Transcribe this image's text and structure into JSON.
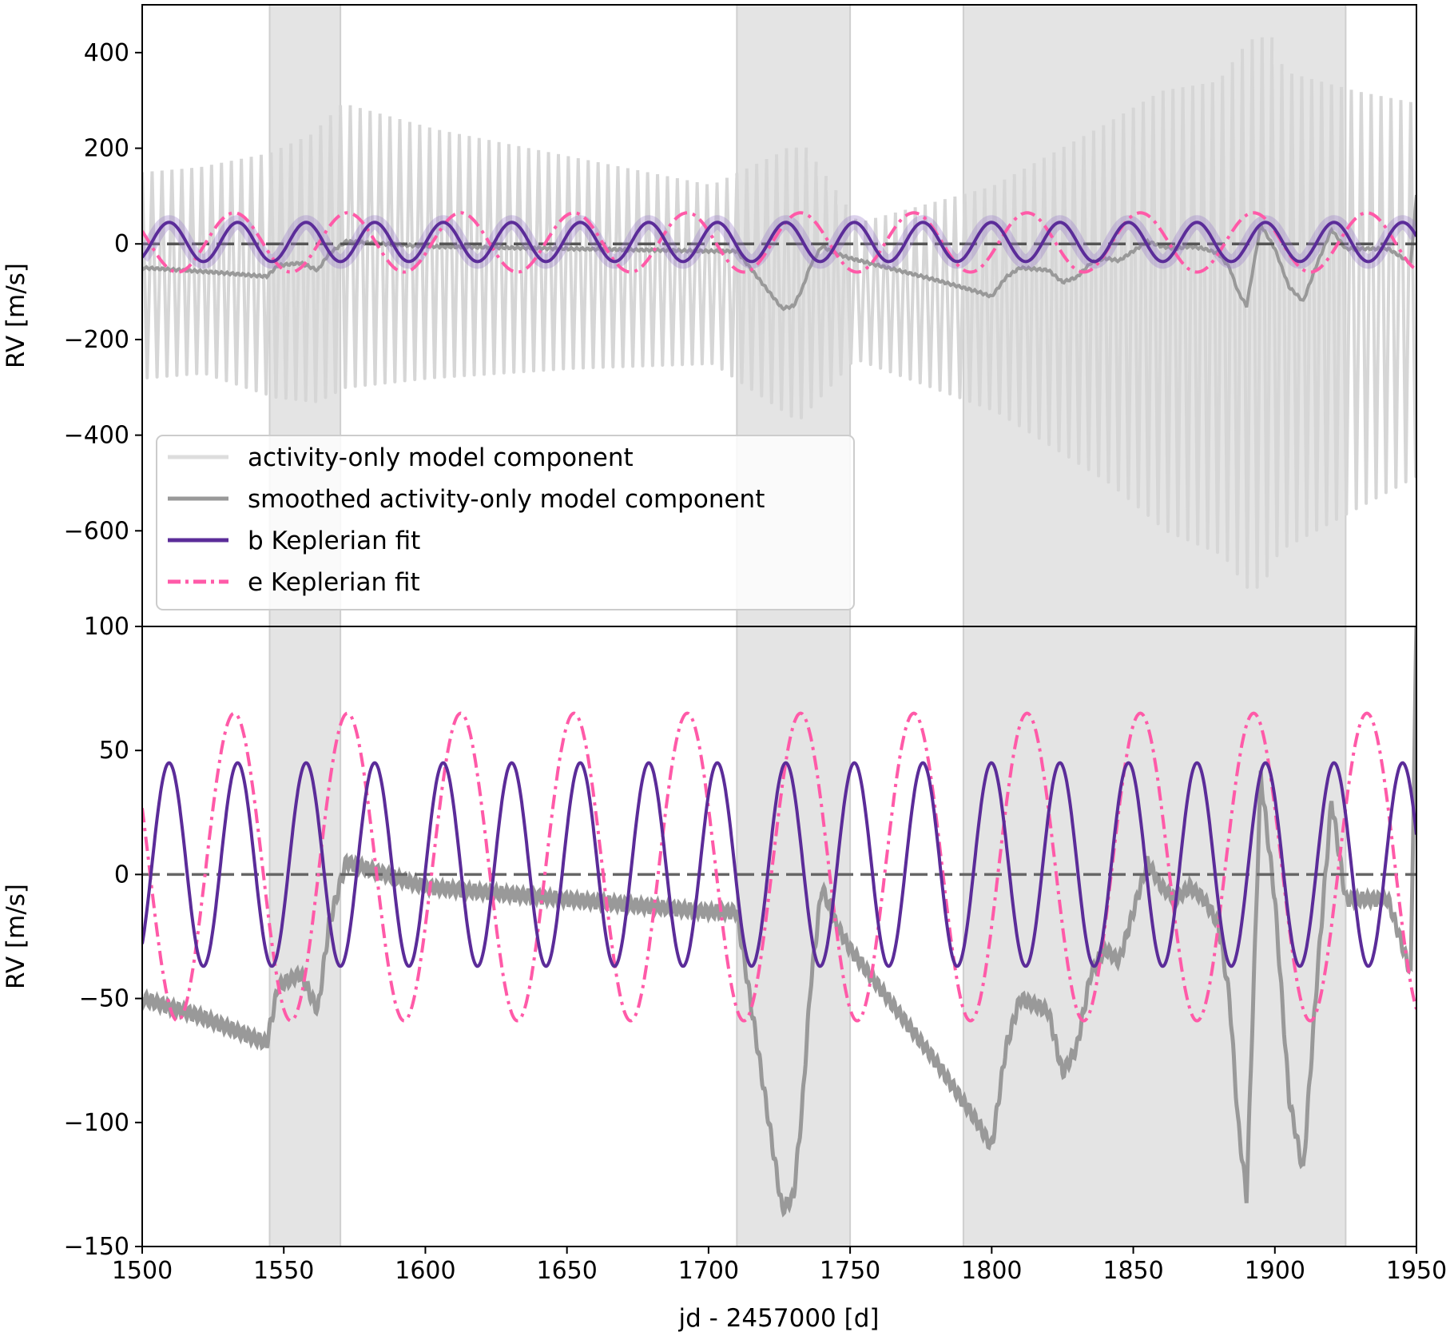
{
  "chart_data": [
    {
      "type": "line",
      "panel": "top",
      "title": "",
      "xlabel": "",
      "ylabel": "RV [m/s]",
      "xlim": [
        1500,
        1950
      ],
      "ylim": [
        -800,
        500
      ],
      "yticks": [
        400,
        200,
        0,
        -200,
        -400,
        -600
      ],
      "ytick_labels": [
        "400",
        "200",
        "0",
        "−200",
        "−400",
        "−600"
      ],
      "shaded_regions": [
        [
          1545,
          1570
        ],
        [
          1710,
          1750
        ],
        [
          1790,
          1925
        ]
      ],
      "reference_line": {
        "y": 0,
        "style": "dashed"
      },
      "legend": {
        "location": "lower-left",
        "entries": [
          {
            "label": "activity-only model component",
            "style": "solid",
            "color": "#dddddd"
          },
          {
            "label": "smoothed activity-only model component",
            "style": "solid",
            "color": "#999999"
          },
          {
            "label": "b Keplerian fit",
            "style": "solid",
            "color": "#5b2c99"
          },
          {
            "label": "e Keplerian fit",
            "style": "dash-dot",
            "color": "#ff5aa8"
          }
        ]
      },
      "series": [
        {
          "name": "activity-only model component",
          "kind": "oscillating envelope",
          "envelope_x": [
            1500,
            1520,
            1545,
            1560,
            1570,
            1600,
            1650,
            1700,
            1725,
            1730,
            1750,
            1800,
            1840,
            1860,
            1880,
            1890,
            1895,
            1900,
            1925,
            1950
          ],
          "envelope_upper": [
            150,
            160,
            190,
            230,
            290,
            240,
            180,
            120,
            190,
            210,
            40,
            120,
            250,
            320,
            340,
            420,
            440,
            360,
            320,
            290
          ],
          "envelope_lower": [
            -280,
            -270,
            -320,
            -330,
            -300,
            -280,
            -260,
            -250,
            -350,
            -370,
            -240,
            -350,
            -500,
            -600,
            -650,
            -730,
            -700,
            -640,
            -560,
            -480
          ]
        },
        {
          "name": "smoothed activity-only model component",
          "x": [
            1500,
            1520,
            1544,
            1548,
            1556,
            1562,
            1566,
            1572,
            1600,
            1650,
            1700,
            1710,
            1714,
            1718,
            1722,
            1726,
            1730,
            1733,
            1736,
            1740,
            1745,
            1750,
            1760,
            1780,
            1795,
            1800,
            1805,
            1810,
            1820,
            1825,
            1830,
            1835,
            1840,
            1845,
            1850,
            1855,
            1860,
            1865,
            1870,
            1875,
            1880,
            1884,
            1887,
            1890,
            1895,
            1900,
            1905,
            1910,
            1915,
            1920,
            1925,
            1930,
            1940,
            1948,
            1950
          ],
          "values": [
            -50,
            -57,
            -68,
            -45,
            -40,
            -55,
            -20,
            5,
            -5,
            -10,
            -15,
            -15,
            -45,
            -75,
            -105,
            -135,
            -130,
            -95,
            -45,
            -5,
            -20,
            -30,
            -45,
            -75,
            -100,
            -110,
            -70,
            -50,
            -55,
            -80,
            -70,
            -40,
            -30,
            -35,
            -15,
            5,
            -5,
            -10,
            -5,
            -10,
            -20,
            -50,
            -100,
            -130,
            40,
            -10,
            -90,
            -120,
            -40,
            30,
            -10,
            -10,
            -10,
            -40,
            100
          ]
        },
        {
          "name": "b Keplerian fit",
          "kind": "sinusoid",
          "amplitude_high": 45,
          "amplitude_low": -37,
          "period": 24.2,
          "phase_peak_x": 1509.5,
          "uncertainty_band": true
        },
        {
          "name": "e Keplerian fit",
          "kind": "sinusoid",
          "amplitude_high": 65,
          "amplitude_low": -59,
          "period": 40.0,
          "phase_peak_x": 1532.5
        }
      ]
    },
    {
      "type": "line",
      "panel": "bottom",
      "title": "",
      "xlabel": "jd - 2457000 [d]",
      "ylabel": "RV [m/s]",
      "xlim": [
        1500,
        1950
      ],
      "ylim": [
        -150,
        100
      ],
      "xticks": [
        1500,
        1550,
        1600,
        1650,
        1700,
        1750,
        1800,
        1850,
        1900,
        1950
      ],
      "xtick_labels": [
        "1500",
        "1550",
        "1600",
        "1650",
        "1700",
        "1750",
        "1800",
        "1850",
        "1900",
        "1950"
      ],
      "yticks": [
        100,
        50,
        0,
        -50,
        -100,
        -150
      ],
      "ytick_labels": [
        "100",
        "50",
        "0",
        "−50",
        "−100",
        "−150"
      ],
      "shaded_regions": [
        [
          1545,
          1570
        ],
        [
          1710,
          1750
        ],
        [
          1790,
          1925
        ]
      ],
      "reference_line": {
        "y": 0,
        "style": "dashed"
      },
      "series": [
        {
          "name": "smoothed activity-only model component",
          "ref": "top.series.1"
        },
        {
          "name": "b Keplerian fit",
          "ref": "top.series.2"
        },
        {
          "name": "e Keplerian fit",
          "ref": "top.series.3"
        }
      ]
    }
  ]
}
